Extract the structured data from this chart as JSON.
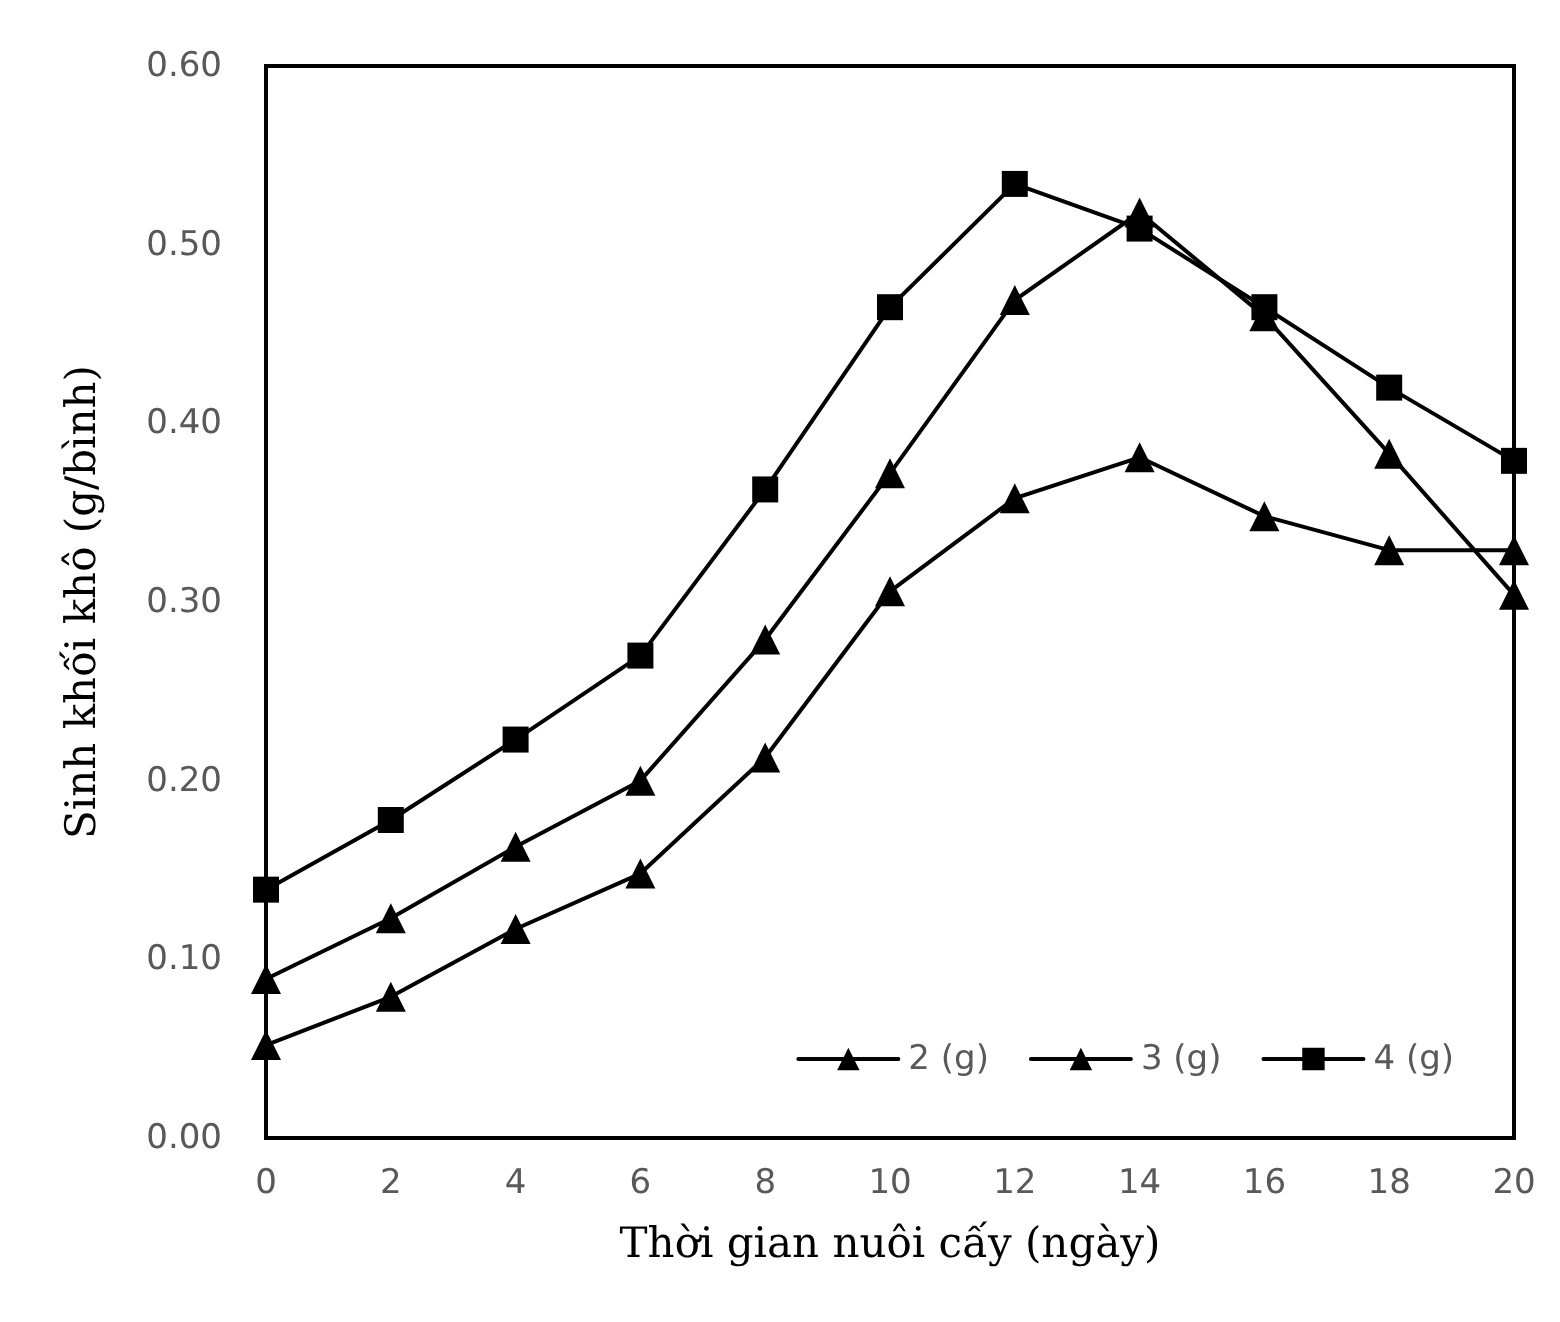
{
  "chart_data": {
    "type": "line",
    "xlabel": "Thời gian nuôi cấy (ngày)",
    "ylabel": "Sinh khối khô (g/bình)",
    "x": [
      0,
      2,
      4,
      6,
      8,
      10,
      12,
      14,
      16,
      18,
      20
    ],
    "series": [
      {
        "name": "2 (g)",
        "color": "#000000",
        "marker": "triangle",
        "values": [
          0.052,
          0.079,
          0.117,
          0.148,
          0.213,
          0.306,
          0.358,
          0.381,
          0.348,
          0.329,
          0.329
        ]
      },
      {
        "name": "3 (g)",
        "color": "#000000",
        "marker": "triangle",
        "values": [
          0.089,
          0.123,
          0.163,
          0.2,
          0.279,
          0.372,
          0.469,
          0.518,
          0.46,
          0.383,
          0.304
        ]
      },
      {
        "name": "4 (g)",
        "color": "#000000",
        "marker": "square",
        "values": [
          0.139,
          0.178,
          0.223,
          0.27,
          0.363,
          0.465,
          0.534,
          0.509,
          0.465,
          0.42,
          0.379
        ]
      }
    ],
    "xlim": [
      0,
      20
    ],
    "xticks": [
      0,
      2,
      4,
      6,
      8,
      10,
      12,
      14,
      16,
      18,
      20
    ],
    "ylim": [
      0,
      0.6
    ],
    "yticks": [
      {
        "value": 0,
        "label": "0.00"
      },
      {
        "value": 0.1,
        "label": "0.10"
      },
      {
        "value": 0.2,
        "label": "0.20"
      },
      {
        "value": 0.3,
        "label": "0.30"
      },
      {
        "value": 0.4,
        "label": "0.40"
      },
      {
        "value": 0.5,
        "label": "0.50"
      },
      {
        "value": 0.6,
        "label": "0.60"
      }
    ],
    "grid": false,
    "legend": "bottom right",
    "line_style": "solid"
  }
}
